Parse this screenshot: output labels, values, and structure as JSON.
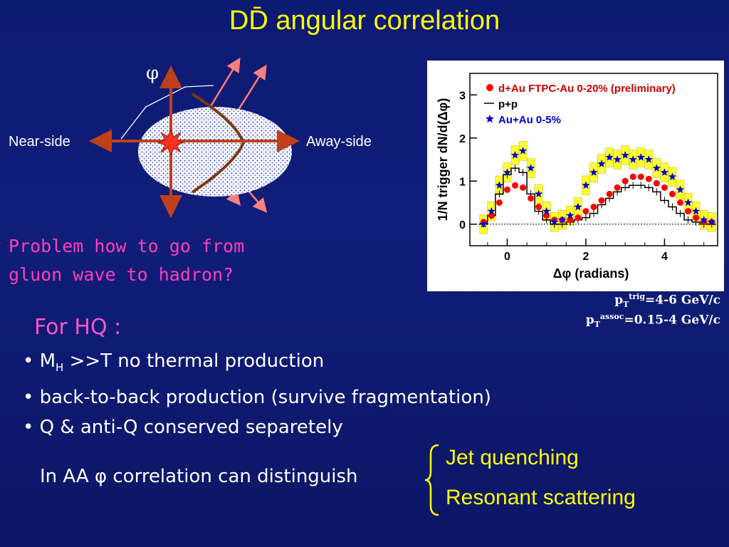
{
  "slide": {
    "title": "DD̄ angular correlation"
  },
  "diagram": {
    "phi_symbol": "φ",
    "near_side_label": "Near-side",
    "away_side_label": "Away-side"
  },
  "problem_text": [
    "Problem how to go from",
    "gluon wave to hadron?"
  ],
  "chart_data": {
    "type": "scatter",
    "xlabel": "Δφ (radians)",
    "ylabel": "1/N trigger dN/d(Δφ)",
    "xlim": [
      -0.95,
      5.35
    ],
    "ylim": [
      -0.5,
      3.5
    ],
    "xticks": [
      0,
      2,
      4
    ],
    "yticks": [
      0,
      1,
      2,
      3
    ],
    "grid": false,
    "legend_position": "top-right",
    "legend": [
      "d+Au FTPC-Au 0-20% (preliminary)",
      "p+p",
      "Au+Au 0-5%"
    ],
    "baseline": 0,
    "series": [
      {
        "name": "d+Au FTPC-Au 0-20% (preliminary)",
        "marker": "circle",
        "color": "#ff0000",
        "x": [
          -0.6,
          -0.4,
          -0.2,
          0.0,
          0.2,
          0.4,
          0.6,
          0.8,
          1.0,
          1.2,
          1.4,
          1.6,
          1.8,
          2.0,
          2.2,
          2.4,
          2.6,
          2.8,
          3.0,
          3.2,
          3.4,
          3.6,
          3.8,
          4.0,
          4.2,
          4.4,
          4.6,
          4.8,
          5.0,
          5.2
        ],
        "y": [
          0.05,
          0.2,
          0.5,
          0.8,
          0.9,
          0.85,
          0.6,
          0.4,
          0.2,
          0.1,
          0.1,
          0.1,
          0.15,
          0.3,
          0.4,
          0.55,
          0.7,
          0.85,
          1.0,
          1.1,
          1.1,
          1.05,
          0.95,
          0.85,
          0.7,
          0.5,
          0.3,
          0.15,
          0.05,
          0.05
        ]
      },
      {
        "name": "p+p",
        "marker": "cross",
        "color": "#000000",
        "x": [
          -0.6,
          -0.4,
          -0.2,
          0.0,
          0.2,
          0.4,
          0.6,
          0.8,
          1.0,
          1.2,
          1.4,
          1.6,
          1.8,
          2.0,
          2.2,
          2.4,
          2.6,
          2.8,
          3.0,
          3.2,
          3.4,
          3.6,
          3.8,
          4.0,
          4.2,
          4.4,
          4.6,
          4.8,
          5.0,
          5.2
        ],
        "y": [
          0.0,
          0.2,
          0.7,
          1.15,
          1.3,
          1.2,
          0.7,
          0.3,
          0.1,
          0.0,
          0.0,
          0.05,
          0.1,
          0.15,
          0.25,
          0.45,
          0.6,
          0.75,
          0.85,
          0.9,
          0.9,
          0.85,
          0.75,
          0.55,
          0.4,
          0.25,
          0.1,
          0.05,
          0.0,
          0.0
        ]
      },
      {
        "name": "Au+Au 0-5%",
        "marker": "star",
        "color": "#0000cc",
        "x": [
          -0.6,
          -0.4,
          -0.2,
          0.0,
          0.2,
          0.4,
          0.6,
          0.8,
          1.0,
          1.2,
          1.4,
          1.6,
          1.8,
          2.0,
          2.2,
          2.4,
          2.6,
          2.8,
          3.0,
          3.2,
          3.4,
          3.6,
          3.8,
          4.0,
          4.2,
          4.4,
          4.6,
          4.8,
          5.0,
          5.2
        ],
        "y": [
          0.0,
          0.3,
          0.9,
          1.2,
          1.6,
          1.7,
          1.3,
          0.7,
          0.3,
          0.05,
          0.1,
          0.2,
          0.4,
          0.9,
          1.2,
          1.4,
          1.55,
          1.5,
          1.6,
          1.5,
          1.55,
          1.5,
          1.3,
          1.2,
          1.1,
          0.8,
          0.5,
          0.3,
          0.1,
          0.05
        ]
      }
    ]
  },
  "pt_notes": {
    "trig_p": "p",
    "trig_sub": "T",
    "trig_sup": "trig",
    "trig_value": "=4-6 GeV/c",
    "assoc_p": "p",
    "assoc_sub": "T",
    "assoc_sup": "assoc",
    "assoc_value": "=0.15-4 GeV/c"
  },
  "hq": {
    "heading": "For HQ :",
    "bullet1_prefix": "• M",
    "bullet1_sub": "H",
    "bullet1_rest": " >>T no thermal production",
    "bullet2": "• back-to-back production (survive fragmentation)",
    "bullet3": "• Q & anti-Q conserved separetely"
  },
  "aa": {
    "text": "In AA φ correlation can distinguish",
    "options": [
      "Jet quenching",
      "Resonant scattering"
    ]
  },
  "colors": {
    "title": "#ffff00",
    "problem": "#ff3fb8",
    "heading": "#ff55cc",
    "options": "#ffff00",
    "arrow": "#c0401a",
    "jet_arrow": "#ff7f7f",
    "band": "#ffff33"
  }
}
